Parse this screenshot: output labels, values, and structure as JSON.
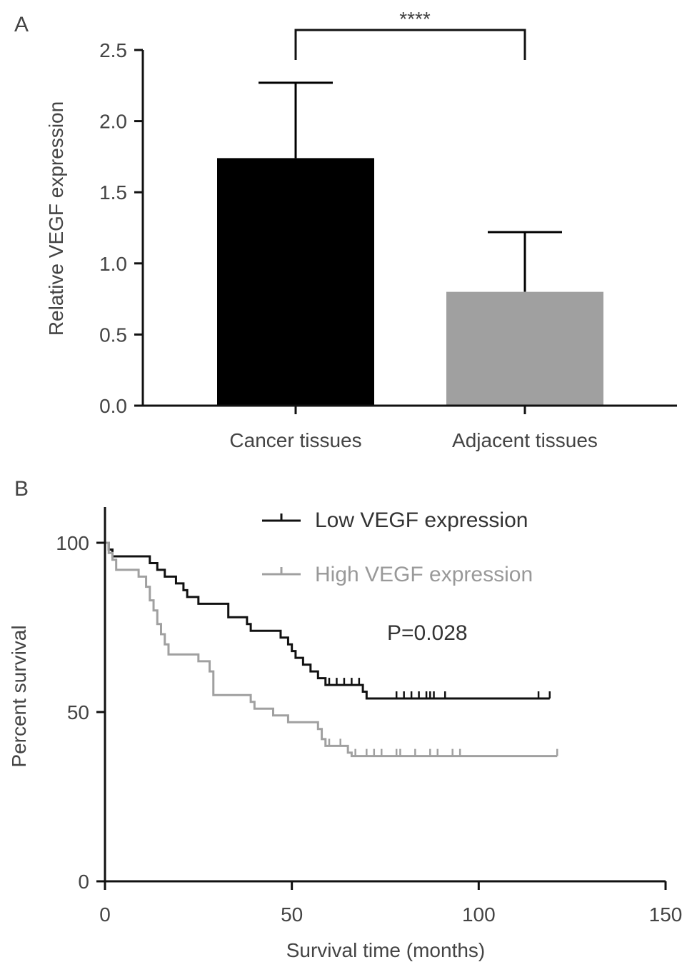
{
  "panel_labels": {
    "a": "A",
    "b": "B"
  },
  "chart_data": [
    {
      "type": "bar",
      "categories": [
        "Cancer tissues",
        "Adjacent tissues"
      ],
      "values": [
        1.74,
        0.8
      ],
      "errors": [
        0.53,
        0.42
      ],
      "colors": [
        "#000000",
        "#a0a0a0"
      ],
      "ylabel": "Relative VEGF expression",
      "xlabel": "",
      "ylim": [
        0,
        2.5
      ],
      "yticks": [
        "0.0",
        "0.5",
        "1.0",
        "1.5",
        "2.0",
        "2.5"
      ],
      "significance": "****"
    },
    {
      "type": "line",
      "subtype": "kaplan-meier",
      "xlabel": "Survival time (months)",
      "ylabel": "Percent survival",
      "xlim": [
        0,
        150
      ],
      "ylim": [
        0,
        100
      ],
      "xticks": [
        "0",
        "50",
        "100",
        "150"
      ],
      "yticks": [
        "0",
        "50",
        "100"
      ],
      "annotation": "P=0.028",
      "legend_position": "top-right",
      "series": [
        {
          "name": "Low VEGF expression",
          "color": "#111111",
          "steps": [
            [
              0,
              100
            ],
            [
              1,
              98
            ],
            [
              2,
              96
            ],
            [
              12,
              94
            ],
            [
              14,
              92
            ],
            [
              16,
              90
            ],
            [
              19,
              88
            ],
            [
              21,
              86
            ],
            [
              22,
              84
            ],
            [
              25,
              82
            ],
            [
              33,
              78
            ],
            [
              38,
              76
            ],
            [
              39,
              74
            ],
            [
              47,
              72
            ],
            [
              49,
              70
            ],
            [
              50,
              68
            ],
            [
              51,
              66
            ],
            [
              53,
              64
            ],
            [
              55,
              62
            ],
            [
              57,
              60
            ],
            [
              59,
              58
            ],
            [
              69,
              56
            ],
            [
              70,
              54
            ],
            [
              119,
              54
            ]
          ],
          "censored": [
            60,
            62,
            64,
            66,
            68,
            78,
            80,
            82,
            84,
            86,
            87,
            88,
            91,
            116,
            119
          ]
        },
        {
          "name": "High VEGF expression",
          "color": "#a0a0a0",
          "steps": [
            [
              0,
              100
            ],
            [
              1,
              97
            ],
            [
              2,
              95
            ],
            [
              3,
              92
            ],
            [
              9,
              90
            ],
            [
              11,
              87
            ],
            [
              12,
              83
            ],
            [
              13,
              80
            ],
            [
              14,
              76
            ],
            [
              15,
              73
            ],
            [
              16,
              70
            ],
            [
              17,
              67
            ],
            [
              25,
              65
            ],
            [
              28,
              62
            ],
            [
              29,
              55
            ],
            [
              39,
              53
            ],
            [
              40,
              51
            ],
            [
              45,
              49
            ],
            [
              49,
              47
            ],
            [
              57,
              45
            ],
            [
              58,
              42
            ],
            [
              59,
              40
            ],
            [
              65,
              38
            ],
            [
              66,
              37
            ],
            [
              121,
              37
            ]
          ],
          "censored": [
            59,
            60,
            63,
            67,
            70,
            72,
            74,
            78,
            79,
            83,
            87,
            89,
            93,
            95,
            121
          ]
        }
      ]
    }
  ]
}
